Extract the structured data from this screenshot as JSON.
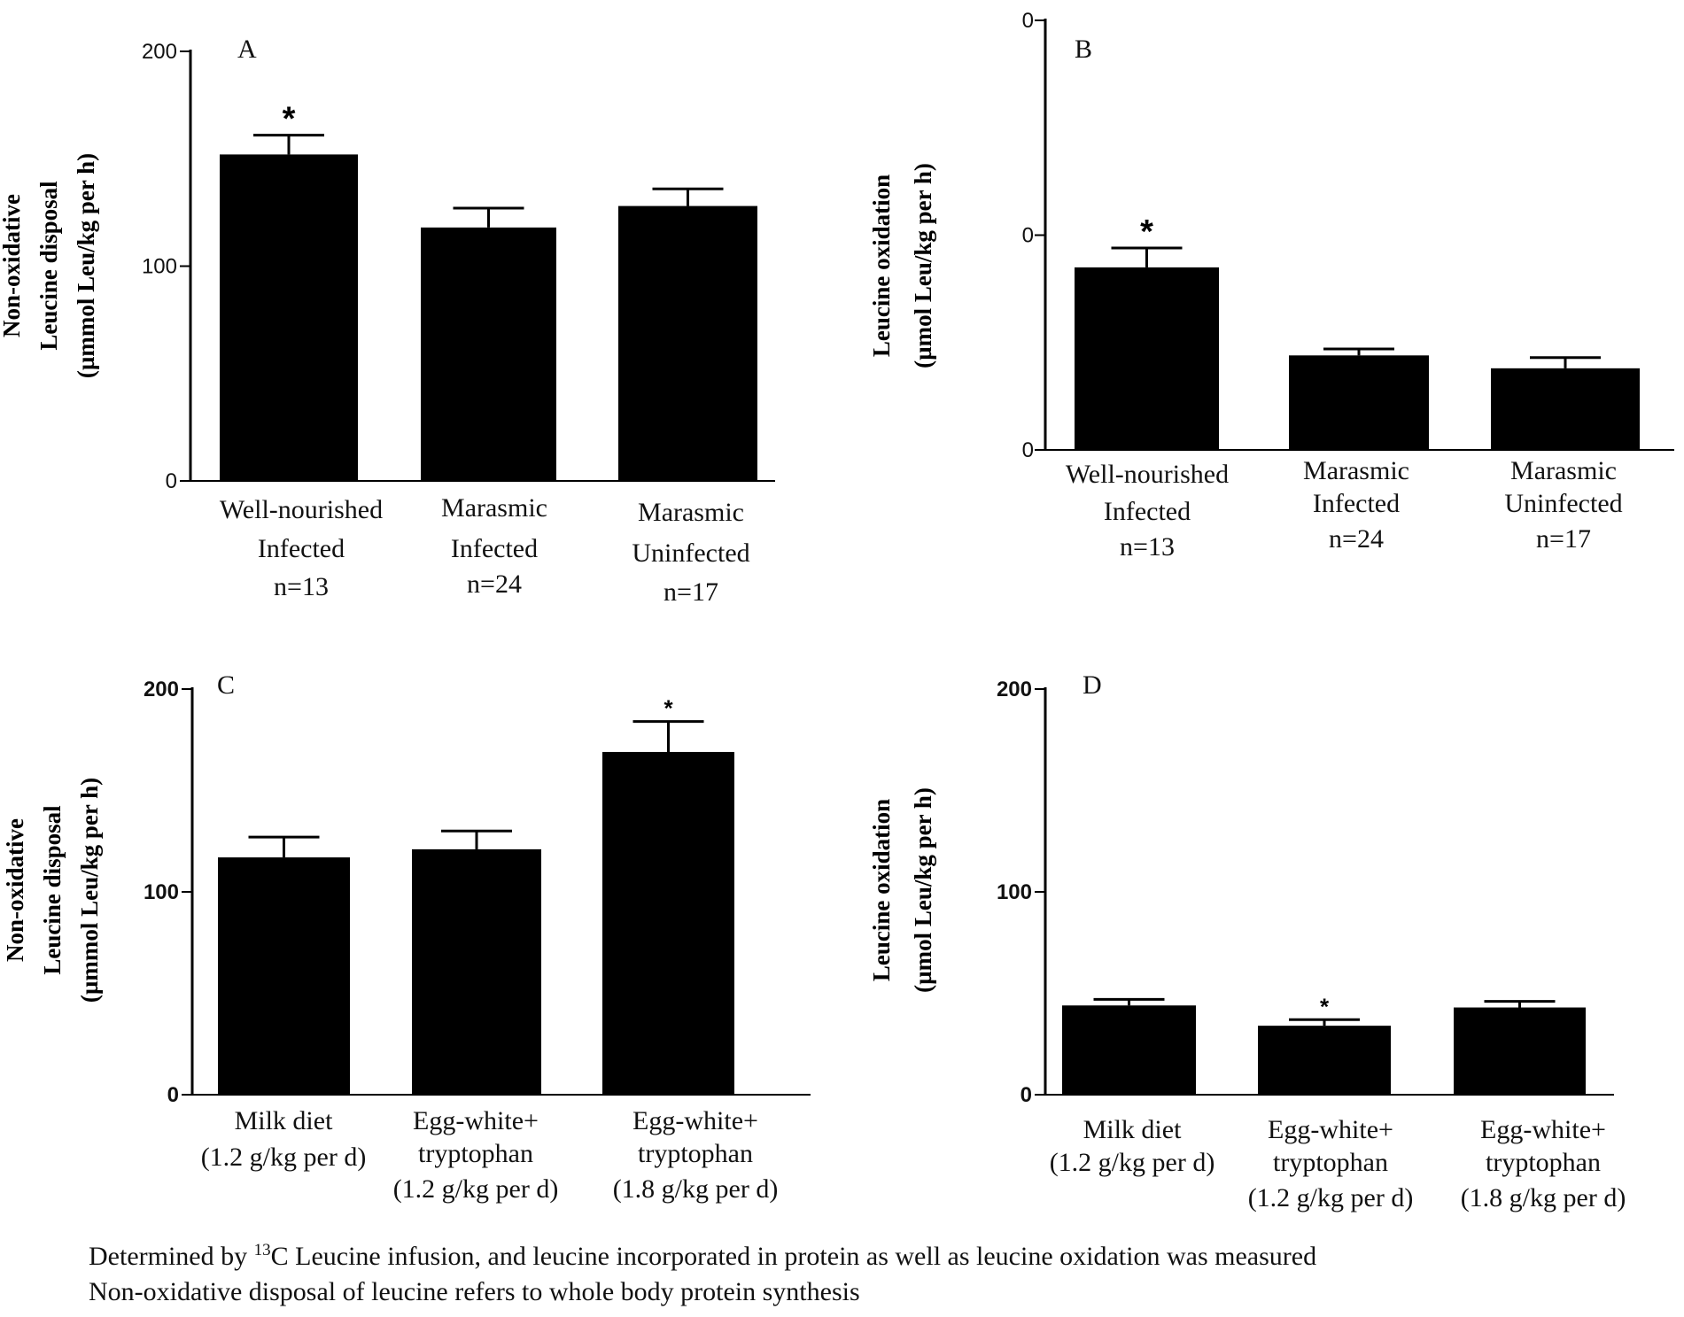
{
  "chart_data": [
    {
      "type": "bar",
      "panel": "A",
      "ylabel_lines": [
        "Non-oxidative",
        "Leucine disposal",
        "(µmmol Leu/kg per h)"
      ],
      "yticks": [
        "200",
        "100",
        "0"
      ],
      "ylim": [
        0,
        200
      ],
      "categories": [
        [
          "Well-nourished",
          "Infected",
          "n=13"
        ],
        [
          "Marasmic",
          "Infected",
          "n=24"
        ],
        [
          "Marasmic",
          "Uninfected",
          "n=17"
        ]
      ],
      "values": [
        152,
        118,
        128
      ],
      "errors": [
        9,
        9,
        8
      ],
      "significance": [
        "*",
        "",
        ""
      ]
    },
    {
      "type": "bar",
      "panel": "B",
      "ylabel_lines": [
        "Leucine oxidation",
        "(µmol Leu/kg per h)"
      ],
      "yticks": [
        "0",
        "0",
        "0"
      ],
      "ylim": [
        0,
        200
      ],
      "categories": [
        [
          "Well-nourished",
          "Infected",
          "n=13"
        ],
        [
          "Marasmic",
          "Infected",
          "n=24"
        ],
        [
          "Marasmic",
          "Uninfected",
          "n=17"
        ]
      ],
      "values": [
        85,
        44,
        38
      ],
      "errors": [
        9,
        3,
        5
      ],
      "significance": [
        "*",
        "",
        ""
      ]
    },
    {
      "type": "bar",
      "panel": "C",
      "ylabel_lines": [
        "Non-oxidative",
        "Leucine disposal",
        "(µmmol Leu/kg per h)"
      ],
      "yticks": [
        "200",
        "100",
        "0"
      ],
      "ylim": [
        0,
        200
      ],
      "categories": [
        [
          "Milk diet",
          "(1.2 g/kg per d)"
        ],
        [
          "Egg-white+",
          "tryptophan",
          "(1.2 g/kg per d)"
        ],
        [
          "Egg-white+",
          "tryptophan",
          "(1.8 g/kg per d)"
        ]
      ],
      "values": [
        117,
        121,
        169
      ],
      "errors": [
        10,
        9,
        15
      ],
      "significance": [
        "",
        "",
        "*"
      ]
    },
    {
      "type": "bar",
      "panel": "D",
      "ylabel_lines": [
        "Leucine oxidation",
        "(µmol Leu/kg per h)"
      ],
      "yticks": [
        "200",
        "100",
        "0"
      ],
      "ylim": [
        0,
        200
      ],
      "categories": [
        [
          "Milk diet",
          "(1.2 g/kg per d)"
        ],
        [
          "Egg-white+",
          "tryptophan",
          "(1.2 g/kg per d)"
        ],
        [
          "Egg-white+",
          "tryptophan",
          "(1.8 g/kg per d)"
        ]
      ],
      "values": [
        44,
        34,
        43
      ],
      "errors": [
        3,
        3,
        3
      ],
      "significance": [
        "",
        "*",
        ""
      ]
    }
  ],
  "footnote": {
    "line1_pre": "Determined by ",
    "line1_sup": "13",
    "line1_post": "C Leucine infusion, and leucine incorporated in protein as well as leucine oxidation was measured",
    "line2": "Non-oxidative disposal of leucine refers to whole body protein synthesis"
  }
}
